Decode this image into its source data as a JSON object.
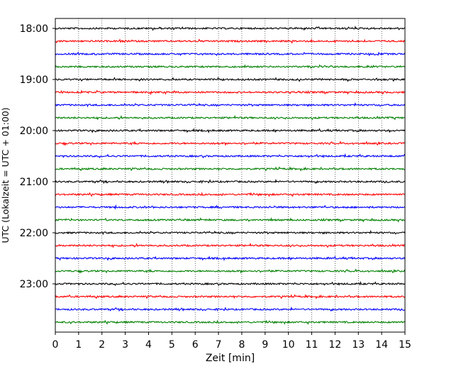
{
  "chart_data": {
    "type": "line",
    "chart_kind": "helicorder (seismogram drum plot)",
    "xlabel": "Zeit  [min]",
    "ylabel": "UTC (Lokalzeit = UTC + 01:00)",
    "xlim": [
      0,
      15
    ],
    "x_ticks": [
      "0",
      "1",
      "2",
      "3",
      "4",
      "5",
      "6",
      "7",
      "8",
      "9",
      "10",
      "11",
      "12",
      "13",
      "14",
      "15"
    ],
    "y_ticks": [
      "18:00",
      "19:00",
      "20:00",
      "21:00",
      "22:00",
      "23:00"
    ],
    "rows_per_hour": 4,
    "minutes_per_row": 15,
    "row_start_times": [
      "18:00",
      "18:15",
      "18:30",
      "18:45",
      "19:00",
      "19:15",
      "19:30",
      "19:45",
      "20:00",
      "20:15",
      "20:30",
      "20:45",
      "21:00",
      "21:15",
      "21:30",
      "21:45",
      "22:00",
      "22:15",
      "22:30",
      "22:45",
      "23:00",
      "23:15",
      "23:30",
      "23:45"
    ],
    "trace_colors": [
      "#000000",
      "#ff0000",
      "#0000ff",
      "#008000"
    ],
    "vertical_grid": "dotted at every minute",
    "legend": "none"
  }
}
